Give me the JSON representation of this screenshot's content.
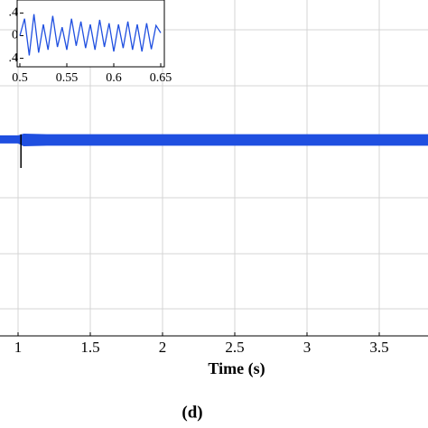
{
  "chart_data": {
    "type": "line",
    "x_label": "Time (s)",
    "caption": "(d)",
    "xlim": [
      0.875,
      3.8375
    ],
    "xticks": [
      1,
      1.5,
      2,
      2.5,
      3,
      3.5
    ],
    "ylim": [
      -3.5,
      2.5
    ],
    "grid": true,
    "series": [
      {
        "color": "#1f4fe0",
        "x": [
          0.875,
          1.0,
          1.04,
          1.2,
          2.0,
          3.0,
          3.8375
        ],
        "values": [
          0.07,
          0.07,
          0.1,
          0.09,
          0.09,
          0.09,
          0.09
        ]
      },
      {
        "color": "#1f4fe0",
        "x": [
          0.875,
          1.0,
          1.04,
          1.2,
          2.0,
          3.0,
          3.8375
        ],
        "values": [
          -0.05,
          -0.05,
          -0.1,
          -0.09,
          -0.09,
          -0.09,
          -0.09
        ]
      },
      {
        "color": "#000000",
        "x": [
          1.02,
          1.02
        ],
        "values": [
          0.1,
          -0.5
        ]
      }
    ],
    "inset": {
      "type": "line",
      "xlim": [
        0.5,
        0.65
      ],
      "xticks": [
        0.5,
        0.55,
        0.6,
        0.65
      ],
      "ylim": [
        -0.55,
        0.55
      ],
      "yticks": [
        {
          "value": 0.4,
          "label": ".4"
        },
        0,
        {
          "value": -0.4,
          "label": ".4"
        }
      ],
      "series": [
        {
          "color": "#1f4fe0",
          "x": [
            0.5,
            0.505,
            0.51,
            0.515,
            0.52,
            0.525,
            0.53,
            0.535,
            0.54,
            0.545,
            0.55,
            0.555,
            0.56,
            0.565,
            0.57,
            0.575,
            0.58,
            0.585,
            0.59,
            0.595,
            0.6,
            0.605,
            0.61,
            0.615,
            0.62,
            0.625,
            0.63,
            0.635,
            0.64,
            0.645,
            0.65
          ],
          "values": [
            0.0,
            0.3,
            -0.35,
            0.38,
            -0.3,
            0.2,
            -0.25,
            0.35,
            -0.2,
            0.15,
            -0.25,
            0.3,
            -0.18,
            0.25,
            -0.22,
            0.2,
            -0.25,
            0.28,
            -0.2,
            0.22,
            -0.28,
            0.2,
            -0.22,
            0.25,
            -0.25,
            0.2,
            -0.28,
            0.22,
            -0.24,
            0.18,
            0.05
          ]
        }
      ]
    }
  }
}
